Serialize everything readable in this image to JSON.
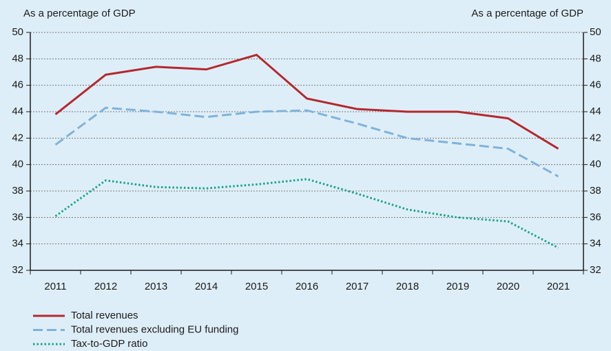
{
  "chart_data": {
    "type": "line",
    "y_label": "As a percentage of GDP",
    "y2_label": "As a percentage of GDP",
    "categories": [
      "2011",
      "2012",
      "2013",
      "2014",
      "2015",
      "2016",
      "2017",
      "2018",
      "2019",
      "2020",
      "2021"
    ],
    "series": [
      {
        "name": "Total revenues",
        "color": "#b5282e",
        "dash": "solid",
        "values": [
          43.8,
          46.8,
          47.4,
          47.2,
          48.3,
          45.0,
          44.2,
          44.0,
          44.0,
          43.5,
          41.2
        ]
      },
      {
        "name": "Total revenues excluding EU funding",
        "color": "#7eb3dc",
        "dash": "dashed",
        "values": [
          41.5,
          44.3,
          44.0,
          43.6,
          44.0,
          44.1,
          43.1,
          42.0,
          41.6,
          41.2,
          39.1
        ]
      },
      {
        "name": "Tax-to-GDP ratio",
        "color": "#17a58a",
        "dash": "dotted",
        "values": [
          36.1,
          38.8,
          38.3,
          38.2,
          38.5,
          38.9,
          37.8,
          36.6,
          36.0,
          35.7,
          33.7
        ]
      }
    ],
    "ylim": [
      32,
      50
    ],
    "yticks": [
      32,
      34,
      36,
      38,
      40,
      42,
      44,
      46,
      48,
      50
    ],
    "y2lim": [
      32,
      50
    ],
    "y2ticks": [
      32,
      34,
      36,
      38,
      40,
      42,
      44,
      46,
      48,
      50
    ],
    "grid": true
  }
}
